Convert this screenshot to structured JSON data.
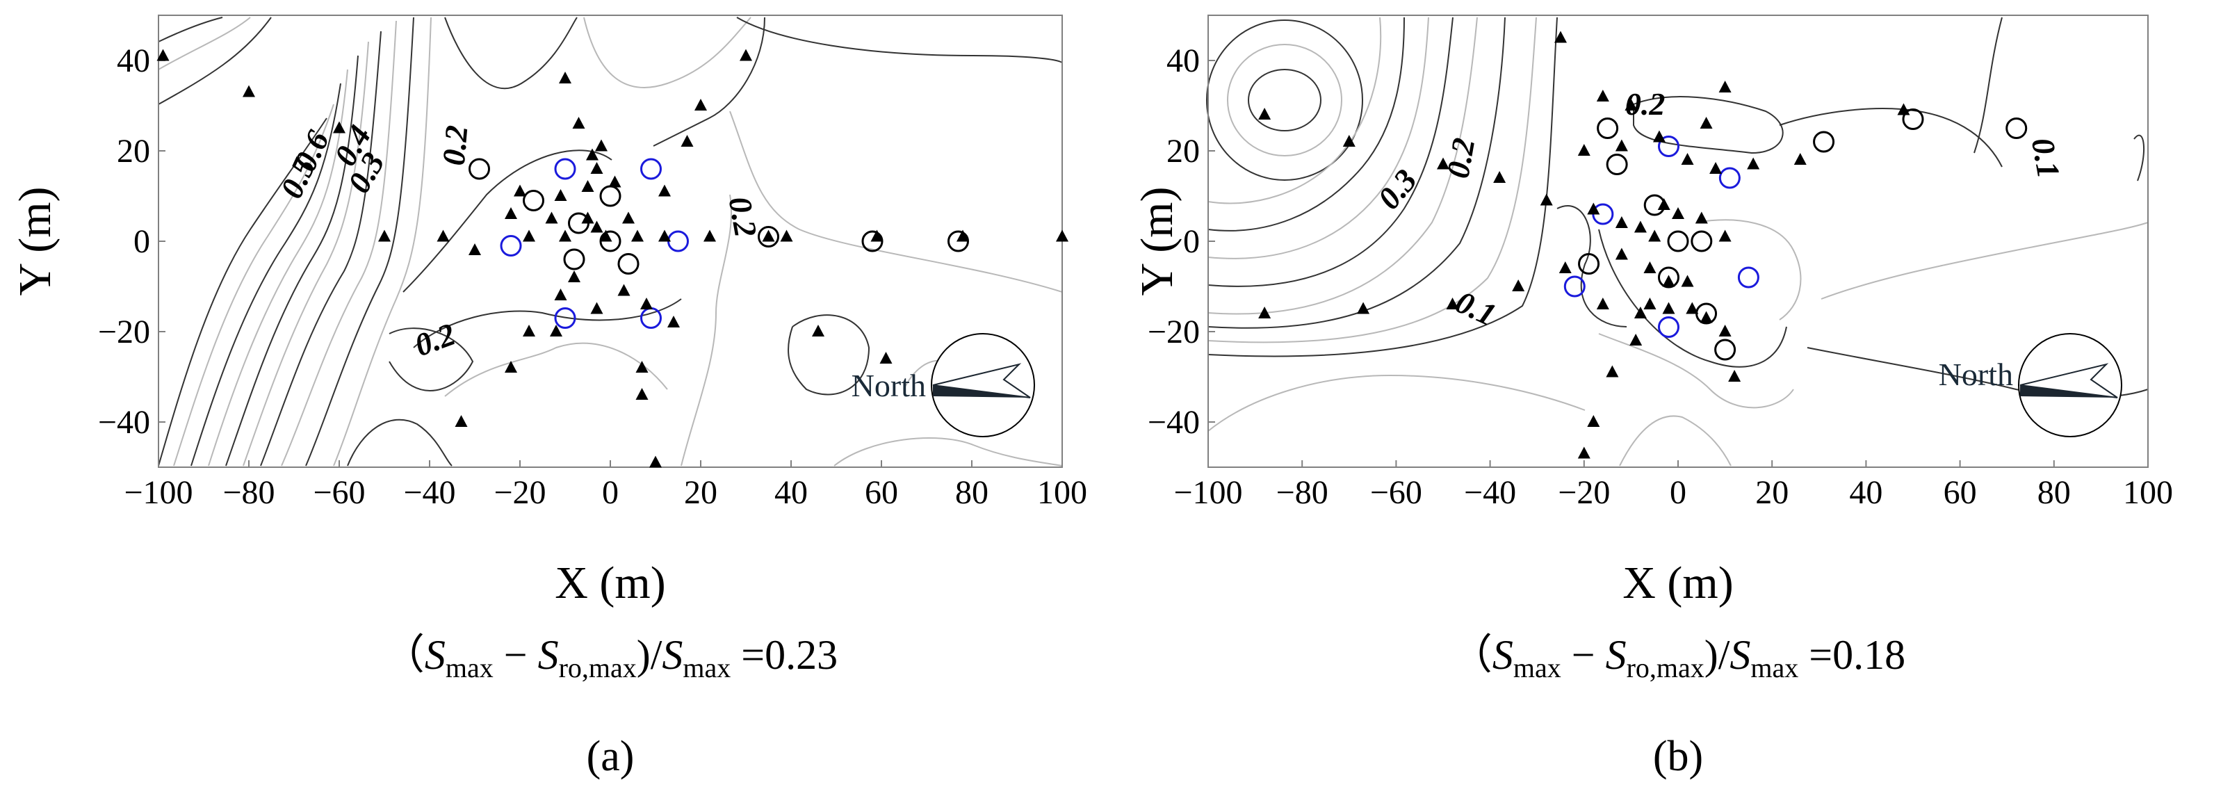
{
  "colors": {
    "circle_black": "#000000",
    "circle_blue": "#1a1adc",
    "contour_dark": "#333333",
    "contour_light": "#b8b8b8",
    "compass_fill": "#1c2630",
    "text": "#000000"
  },
  "chart_data": [
    {
      "type": "scatter",
      "panel_label": "(a)",
      "xlabel": "X (m)",
      "ylabel": "Y (m)",
      "xlim": [
        -100,
        100
      ],
      "ylim": [
        -50,
        50
      ],
      "x_ticks": [
        -100,
        -80,
        -60,
        -40,
        -20,
        0,
        20,
        40,
        60,
        80,
        100
      ],
      "y_ticks": [
        40,
        20,
        0,
        -20,
        -40
      ],
      "x_tick_labels": [
        "−100",
        "−80",
        "−60",
        "−40",
        "−20",
        "0",
        "20",
        "40",
        "60",
        "80",
        "100"
      ],
      "y_tick_labels": [
        "40",
        "20",
        "0",
        "−20",
        "−40"
      ],
      "formula": {
        "lead": "（",
        "s1": "S",
        "sub1": "max",
        "minus": " − ",
        "s2": "S",
        "sub2": "ro,max",
        "mid": ")/",
        "s3": "S",
        "sub3": "max",
        "eq": " =",
        "value": "0.23"
      },
      "compass_label": "North",
      "contour_labels": [
        {
          "text": "0.6",
          "x": -64,
          "y": 19,
          "angle": -65
        },
        {
          "text": "0.5",
          "x": -67,
          "y": 13,
          "angle": -65
        },
        {
          "text": "0.4",
          "x": -55,
          "y": 20,
          "angle": -60
        },
        {
          "text": "0.3",
          "x": -52,
          "y": 14,
          "angle": -60
        },
        {
          "text": "0.2",
          "x": -32,
          "y": 21,
          "angle": -85
        },
        {
          "text": "0.2",
          "x": 27,
          "y": 5,
          "angle": 80
        },
        {
          "text": "0.2",
          "x": -38,
          "y": -24,
          "angle": -20
        }
      ],
      "triangles": [
        [
          -99,
          41
        ],
        [
          -80,
          33
        ],
        [
          -10,
          36
        ],
        [
          -7,
          26
        ],
        [
          -60,
          25
        ],
        [
          -2,
          21
        ],
        [
          20,
          30
        ],
        [
          30,
          41
        ],
        [
          -4,
          19
        ],
        [
          17,
          22
        ],
        [
          -3,
          16
        ],
        [
          -5,
          12
        ],
        [
          -20,
          11
        ],
        [
          -11,
          10
        ],
        [
          1,
          13
        ],
        [
          12,
          11
        ],
        [
          -22,
          6
        ],
        [
          -13,
          5
        ],
        [
          -5,
          5
        ],
        [
          -3,
          3
        ],
        [
          4,
          5
        ],
        [
          -50,
          1
        ],
        [
          -37,
          1
        ],
        [
          -18,
          1
        ],
        [
          -10,
          1
        ],
        [
          -1,
          1
        ],
        [
          6,
          1
        ],
        [
          12,
          1
        ],
        [
          22,
          1
        ],
        [
          35,
          1
        ],
        [
          39,
          1
        ],
        [
          59,
          1
        ],
        [
          78,
          1
        ],
        [
          100,
          1
        ],
        [
          -30,
          -2
        ],
        [
          -8,
          -8
        ],
        [
          -11,
          -12
        ],
        [
          3,
          -11
        ],
        [
          -3,
          -15
        ],
        [
          8,
          -14
        ],
        [
          -18,
          -20
        ],
        [
          -12,
          -20
        ],
        [
          14,
          -18
        ],
        [
          -22,
          -28
        ],
        [
          7,
          -28
        ],
        [
          46,
          -20
        ],
        [
          61,
          -26
        ],
        [
          -33,
          -40
        ],
        [
          7,
          -34
        ],
        [
          10,
          -49
        ]
      ],
      "black_circles": [
        [
          -29,
          16
        ],
        [
          -17,
          9
        ],
        [
          0,
          10
        ],
        [
          -7,
          4
        ],
        [
          0,
          0
        ],
        [
          -8,
          -4
        ],
        [
          4,
          -5
        ],
        [
          35,
          1
        ],
        [
          58,
          0
        ],
        [
          77,
          0
        ]
      ],
      "blue_circles": [
        [
          -10,
          16
        ],
        [
          9,
          16
        ],
        [
          -22,
          -1
        ],
        [
          15,
          0
        ],
        [
          -10,
          -17
        ],
        [
          9,
          -17
        ]
      ]
    },
    {
      "type": "scatter",
      "panel_label": "(b)",
      "xlabel": "X (m)",
      "ylabel": "Y (m)",
      "xlim": [
        -100,
        100
      ],
      "ylim": [
        -50,
        50
      ],
      "x_ticks": [
        -100,
        -80,
        -60,
        -40,
        -20,
        0,
        20,
        40,
        60,
        80,
        100
      ],
      "y_ticks": [
        40,
        20,
        0,
        -20,
        -40
      ],
      "x_tick_labels": [
        "−100",
        "−80",
        "−60",
        "−40",
        "−20",
        "0",
        "20",
        "40",
        "60",
        "80",
        "100"
      ],
      "y_tick_labels": [
        "40",
        "20",
        "0",
        "−20",
        "−40"
      ],
      "formula": {
        "lead": "（",
        "s1": "S",
        "sub1": "max",
        "minus": " − ",
        "s2": "S",
        "sub2": "ro,max",
        "mid": ")/",
        "s3": "S",
        "sub3": "max",
        "eq": " =",
        "value": "0.18"
      },
      "compass_label": "North",
      "contour_labels": [
        {
          "text": "0.2",
          "x": -7,
          "y": 28,
          "angle": 0
        },
        {
          "text": "0.2",
          "x": -44,
          "y": 18,
          "angle": -80
        },
        {
          "text": "0.3",
          "x": -58,
          "y": 10,
          "angle": -50
        },
        {
          "text": "0.1",
          "x": 76,
          "y": 18,
          "angle": 80
        },
        {
          "text": "0.1",
          "x": -44,
          "y": -17,
          "angle": 25
        }
      ],
      "triangles": [
        [
          -25,
          45
        ],
        [
          -88,
          28
        ],
        [
          -70,
          22
        ],
        [
          -50,
          17
        ],
        [
          -38,
          14
        ],
        [
          -16,
          32
        ],
        [
          -10,
          30
        ],
        [
          6,
          26
        ],
        [
          10,
          34
        ],
        [
          -4,
          23
        ],
        [
          -12,
          21
        ],
        [
          -20,
          20
        ],
        [
          2,
          18
        ],
        [
          8,
          16
        ],
        [
          16,
          17
        ],
        [
          26,
          18
        ],
        [
          48,
          29
        ],
        [
          -28,
          9
        ],
        [
          -18,
          7
        ],
        [
          -12,
          4
        ],
        [
          -8,
          3
        ],
        [
          -3,
          8
        ],
        [
          -5,
          1
        ],
        [
          0,
          6
        ],
        [
          5,
          5
        ],
        [
          10,
          1
        ],
        [
          -24,
          -6
        ],
        [
          -34,
          -10
        ],
        [
          -12,
          -3
        ],
        [
          -6,
          -6
        ],
        [
          -2,
          -9
        ],
        [
          2,
          -9
        ],
        [
          -6,
          -14
        ],
        [
          3,
          -15
        ],
        [
          -8,
          -16
        ],
        [
          -9,
          -22
        ],
        [
          -2,
          -15
        ],
        [
          6,
          -17
        ],
        [
          10,
          -20
        ],
        [
          -14,
          -29
        ],
        [
          12,
          -30
        ],
        [
          -18,
          -40
        ],
        [
          -20,
          -47
        ],
        [
          -88,
          -16
        ],
        [
          -67,
          -15
        ],
        [
          -48,
          -14
        ],
        [
          -16,
          -14
        ]
      ],
      "black_circles": [
        [
          -15,
          25
        ],
        [
          -13,
          17
        ],
        [
          -5,
          8
        ],
        [
          -19,
          -5
        ],
        [
          -2,
          -8
        ],
        [
          0,
          0
        ],
        [
          5,
          0
        ],
        [
          6,
          -16
        ],
        [
          10,
          -24
        ],
        [
          31,
          22
        ],
        [
          50,
          27
        ],
        [
          72,
          25
        ]
      ],
      "blue_circles": [
        [
          -2,
          21
        ],
        [
          11,
          14
        ],
        [
          -16,
          6
        ],
        [
          -22,
          -10
        ],
        [
          15,
          -8
        ],
        [
          -2,
          -19
        ]
      ]
    }
  ]
}
